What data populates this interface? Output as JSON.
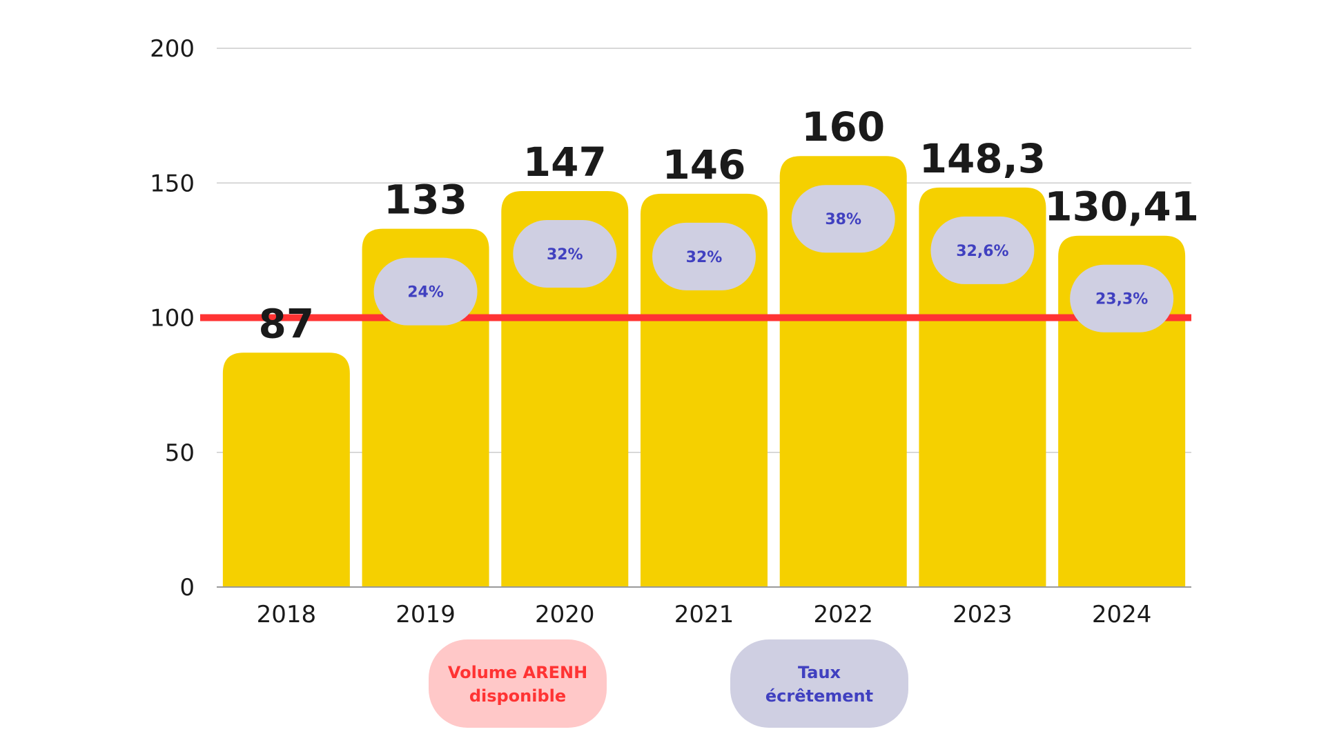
{
  "chart_data": {
    "type": "bar",
    "categories": [
      "2018",
      "2019",
      "2020",
      "2021",
      "2022",
      "2023",
      "2024"
    ],
    "values": [
      87,
      133,
      147,
      146,
      160,
      148.3,
      130.41
    ],
    "value_labels": [
      "87",
      "133",
      "147",
      "146",
      "160",
      "148,3",
      "130,41"
    ],
    "rate_labels": [
      "",
      "24%",
      "32%",
      "32%",
      "38%",
      "32,6%",
      "23,3%"
    ],
    "y_ticks": [
      "0",
      "50",
      "100",
      "150",
      "200"
    ],
    "ylim": [
      0,
      200
    ],
    "grid": true,
    "reference_line": {
      "value": 100,
      "color": "#ff3333"
    },
    "legend": [
      {
        "label": "Volume ARENH disponible",
        "color": "#ff3333",
        "background": "#ffc8c8"
      },
      {
        "label": "Taux écrêtement",
        "color": "#4040c0",
        "background": "#cfcfe2"
      }
    ],
    "legend_position": "bottom",
    "colors": {
      "bar": "#f5d000",
      "pill": "#cfcfe2",
      "pill_text": "#4040c0",
      "grid": "#cccccc",
      "axis": "#999999"
    }
  }
}
